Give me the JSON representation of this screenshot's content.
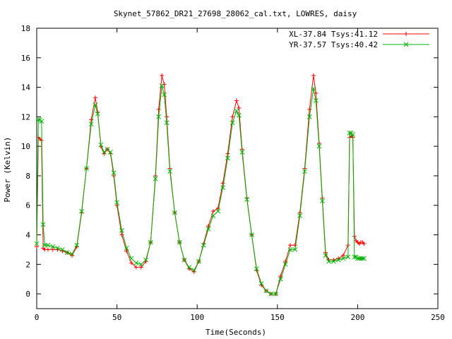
{
  "chart_data": {
    "type": "line",
    "title": "Skynet_57862_DR21_27698_28062_cal.txt, LOWRES, daisy",
    "xlabel": "Time(Seconds)",
    "ylabel": "Power (Kelvin)",
    "xlim": [
      0,
      250
    ],
    "ylim": [
      -1,
      18
    ],
    "xticks": [
      "0",
      "50",
      "100",
      "150",
      "200",
      "250"
    ],
    "yticks": [
      "0",
      "2",
      "4",
      "6",
      "8",
      "10",
      "12",
      "14",
      "16",
      "18"
    ],
    "grid": false,
    "legend": "top-right",
    "series": [
      {
        "name": "XL-37.84 Tsys:41.12",
        "color": "#ff0000",
        "marker": "plus",
        "x": [
          0,
          1,
          2,
          3,
          4,
          5,
          7,
          10,
          13,
          16,
          19,
          22,
          25,
          28,
          31,
          34,
          36.5,
          38,
          40,
          42,
          44,
          46,
          48,
          50,
          53,
          56,
          59,
          62,
          65,
          68,
          71,
          74,
          76,
          78,
          79.5,
          81,
          83,
          86,
          89,
          92,
          95,
          98,
          101,
          104,
          107,
          110,
          113,
          116,
          119,
          122,
          124.5,
          126,
          128,
          131,
          134,
          137,
          140,
          143,
          146,
          149,
          152,
          155,
          158,
          161,
          164,
          167,
          170,
          172.5,
          174,
          176,
          178,
          180,
          182,
          185,
          188,
          191,
          194,
          195,
          196,
          197,
          198,
          199,
          200,
          201,
          202,
          203,
          204
        ],
        "values": [
          3.2,
          10.6,
          10.5,
          10.4,
          3.1,
          3.0,
          3.0,
          3.0,
          3.0,
          2.9,
          2.8,
          2.6,
          3.2,
          5.5,
          8.5,
          11.8,
          13.3,
          12.3,
          10.0,
          9.5,
          9.8,
          9.5,
          8.0,
          6.0,
          4.0,
          2.9,
          2.1,
          1.8,
          1.8,
          2.2,
          3.5,
          8.0,
          12.5,
          14.8,
          14.2,
          12.0,
          8.5,
          5.5,
          3.5,
          2.3,
          1.7,
          1.5,
          2.2,
          3.4,
          4.6,
          5.6,
          5.8,
          7.5,
          9.5,
          12.0,
          13.1,
          12.6,
          9.8,
          6.5,
          4.0,
          1.6,
          0.6,
          0.2,
          0.0,
          0.0,
          1.2,
          2.2,
          3.3,
          3.3,
          5.5,
          8.5,
          12.5,
          14.8,
          13.6,
          10.2,
          6.5,
          2.8,
          2.3,
          2.3,
          2.4,
          2.6,
          3.3,
          10.6,
          10.7,
          10.6,
          3.9,
          3.6,
          3.5,
          3.4,
          3.5,
          3.5,
          3.4
        ]
      },
      {
        "name": "YR-37.57 Tsys:40.42",
        "color": "#00b000",
        "marker": "cross",
        "x": [
          0,
          1,
          2,
          3,
          4,
          5,
          7,
          10,
          13,
          16,
          19,
          22,
          25,
          28,
          31,
          34,
          36.5,
          38,
          40,
          42,
          44,
          46,
          48,
          50,
          53,
          56,
          59,
          62,
          65,
          68,
          71,
          74,
          76,
          78,
          79.5,
          81,
          83,
          86,
          89,
          92,
          95,
          98,
          101,
          104,
          107,
          110,
          113,
          116,
          119,
          122,
          124.5,
          126,
          128,
          131,
          134,
          137,
          140,
          143,
          146,
          149,
          152,
          155,
          158,
          161,
          164,
          167,
          170,
          172.5,
          174,
          176,
          178,
          180,
          182,
          185,
          188,
          191,
          194,
          195,
          196,
          197,
          198,
          199,
          200,
          201,
          202,
          203,
          204
        ],
        "values": [
          3.4,
          11.8,
          11.8,
          11.7,
          4.7,
          3.3,
          3.3,
          3.2,
          3.1,
          3.0,
          2.8,
          2.7,
          3.3,
          5.6,
          8.5,
          11.5,
          12.8,
          12.2,
          10.1,
          9.6,
          9.8,
          9.6,
          8.2,
          6.2,
          4.3,
          3.1,
          2.4,
          2.1,
          2.0,
          2.3,
          3.5,
          7.8,
          12.0,
          14.1,
          13.5,
          11.6,
          8.3,
          5.5,
          3.5,
          2.3,
          1.8,
          1.6,
          2.2,
          3.3,
          4.4,
          5.3,
          5.6,
          7.2,
          9.2,
          11.6,
          12.4,
          12.1,
          9.6,
          6.4,
          4.0,
          1.7,
          0.7,
          0.2,
          0.0,
          0.0,
          1.0,
          2.0,
          3.0,
          3.0,
          5.3,
          8.3,
          12.0,
          13.9,
          13.1,
          10.0,
          6.3,
          2.6,
          2.2,
          2.2,
          2.3,
          2.4,
          2.5,
          10.9,
          10.9,
          10.8,
          2.5,
          2.5,
          2.4,
          2.4,
          2.4,
          2.4,
          2.4
        ]
      }
    ]
  }
}
